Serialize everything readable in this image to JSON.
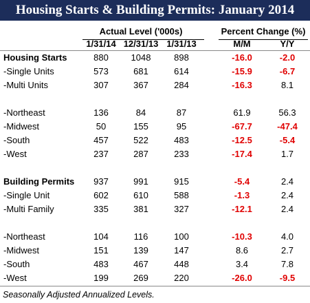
{
  "title": "Housing Starts & Building Permits: January 2014",
  "header": {
    "groups": [
      "Actual Level ('000s)",
      "Percent Change (%)"
    ],
    "columns": [
      "1/31/14",
      "12/31/13",
      "1/31/13",
      "M/M",
      "Y/Y"
    ]
  },
  "table": {
    "groups": [
      [
        {
          "label": "Housing Starts",
          "bold": true,
          "values": [
            "880",
            "1048",
            "898",
            "-16.0",
            "-2.0"
          ]
        },
        {
          "label": "-Single Units",
          "values": [
            "573",
            "681",
            "614",
            "-15.9",
            "-6.7"
          ]
        },
        {
          "label": "-Multi Units",
          "values": [
            "307",
            "367",
            "284",
            "-16.3",
            "8.1"
          ]
        }
      ],
      [
        {
          "label": "-Northeast",
          "values": [
            "136",
            "84",
            "87",
            "61.9",
            "56.3"
          ]
        },
        {
          "label": "-Midwest",
          "values": [
            "50",
            "155",
            "95",
            "-67.7",
            "-47.4"
          ]
        },
        {
          "label": "-South",
          "values": [
            "457",
            "522",
            "483",
            "-12.5",
            "-5.4"
          ]
        },
        {
          "label": "-West",
          "values": [
            "237",
            "287",
            "233",
            "-17.4",
            "1.7"
          ]
        }
      ],
      [
        {
          "label": "Building Permits",
          "bold": true,
          "values": [
            "937",
            "991",
            "915",
            "-5.4",
            "2.4"
          ]
        },
        {
          "label": "-Single Unit",
          "values": [
            "602",
            "610",
            "588",
            "-1.3",
            "2.4"
          ]
        },
        {
          "label": "-Multi Family",
          "values": [
            "335",
            "381",
            "327",
            "-12.1",
            "2.4"
          ]
        }
      ],
      [
        {
          "label": "-Northeast",
          "values": [
            "104",
            "116",
            "100",
            "-10.3",
            "4.0"
          ]
        },
        {
          "label": "-Midwest",
          "values": [
            "151",
            "139",
            "147",
            "8.6",
            "2.7"
          ]
        },
        {
          "label": "-South",
          "values": [
            "483",
            "467",
            "448",
            "3.4",
            "7.8"
          ]
        },
        {
          "label": "-West",
          "values": [
            "199",
            "269",
            "220",
            "-26.0",
            "-9.5"
          ]
        }
      ]
    ]
  },
  "footnote": "Seasonally Adjusted Annualized Levels."
}
